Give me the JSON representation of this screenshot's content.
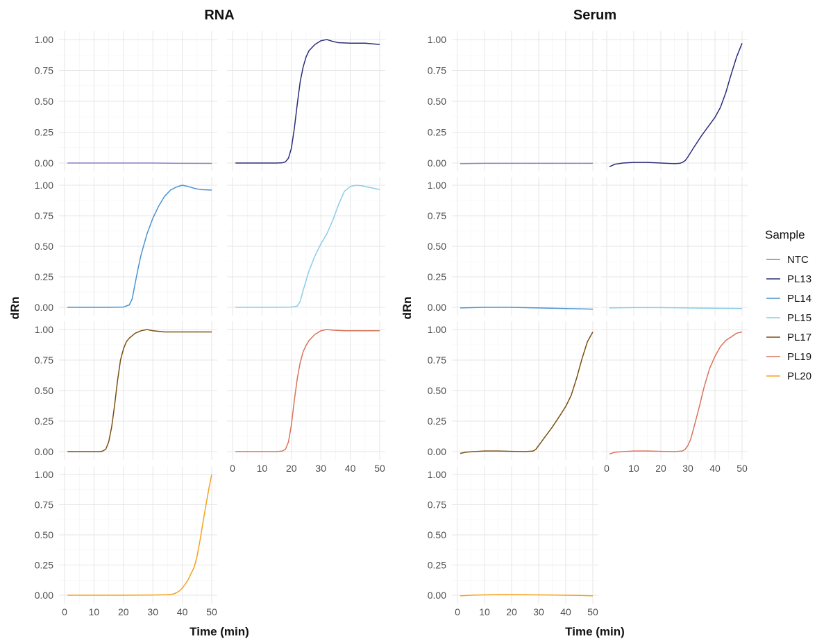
{
  "chart_data": [
    {
      "type": "line",
      "title": "RNA",
      "xlabel": "Time (min)",
      "ylabel": "dRn",
      "xlim": [
        0,
        50
      ],
      "ylim": [
        0,
        1
      ],
      "x_ticks": [
        "0",
        "10",
        "20",
        "30",
        "40",
        "50"
      ],
      "y_ticks": [
        "0.00",
        "0.25",
        "0.50",
        "0.75",
        "1.00"
      ],
      "grid": true,
      "facets": [
        {
          "sample": "NTC",
          "x": [
            1,
            10,
            20,
            30,
            40,
            50
          ],
          "y": [
            0,
            0,
            0,
            0,
            -0.002,
            -0.003
          ]
        },
        {
          "sample": "PL13",
          "x": [
            1,
            10,
            15,
            17,
            18,
            19,
            20,
            21,
            22,
            23,
            24,
            25,
            26,
            28,
            30,
            32,
            34,
            36,
            40,
            45,
            50
          ],
          "y": [
            0,
            0,
            0,
            0.002,
            0.01,
            0.04,
            0.12,
            0.28,
            0.48,
            0.66,
            0.78,
            0.86,
            0.91,
            0.96,
            0.99,
            1.0,
            0.985,
            0.975,
            0.97,
            0.97,
            0.96
          ]
        },
        {
          "sample": "PL14",
          "x": [
            1,
            10,
            15,
            20,
            22,
            23,
            24,
            25,
            26,
            28,
            30,
            32,
            34,
            36,
            38,
            40,
            42,
            44,
            46,
            50
          ],
          "y": [
            0,
            0,
            0,
            0.002,
            0.02,
            0.07,
            0.2,
            0.32,
            0.43,
            0.6,
            0.73,
            0.83,
            0.91,
            0.96,
            0.985,
            1.0,
            0.99,
            0.975,
            0.965,
            0.96
          ]
        },
        {
          "sample": "PL15",
          "x": [
            1,
            10,
            15,
            20,
            22,
            23,
            24,
            25,
            26,
            28,
            30,
            32,
            34,
            36,
            38,
            40,
            42,
            44,
            46,
            48,
            50
          ],
          "y": [
            0,
            0,
            0,
            0.002,
            0.01,
            0.05,
            0.14,
            0.22,
            0.3,
            0.42,
            0.52,
            0.6,
            0.71,
            0.84,
            0.95,
            0.99,
            1.0,
            0.995,
            0.985,
            0.975,
            0.965
          ]
        },
        {
          "sample": "PL17",
          "x": [
            1,
            10,
            12,
            13,
            14,
            15,
            16,
            17,
            18,
            19,
            20,
            21,
            22,
            24,
            26,
            28,
            30,
            32,
            34,
            38,
            42,
            46,
            50
          ],
          "y": [
            0,
            0,
            0,
            0.005,
            0.02,
            0.08,
            0.2,
            0.38,
            0.58,
            0.75,
            0.84,
            0.9,
            0.93,
            0.97,
            0.99,
            1.0,
            0.99,
            0.985,
            0.98,
            0.98,
            0.98,
            0.98,
            0.98
          ]
        },
        {
          "sample": "PL19",
          "x": [
            1,
            10,
            15,
            17,
            18,
            19,
            20,
            21,
            22,
            23,
            24,
            25,
            26,
            28,
            30,
            32,
            34,
            38,
            42,
            46,
            50
          ],
          "y": [
            0,
            0,
            0,
            0.005,
            0.02,
            0.08,
            0.22,
            0.42,
            0.6,
            0.73,
            0.82,
            0.87,
            0.91,
            0.96,
            0.99,
            1.0,
            0.995,
            0.99,
            0.99,
            0.99,
            0.99
          ]
        },
        {
          "sample": "PL20",
          "x": [
            1,
            10,
            20,
            30,
            35,
            37,
            38,
            39,
            40,
            41,
            42,
            43,
            44,
            45,
            46,
            47,
            48,
            49,
            50
          ],
          "y": [
            0,
            0,
            0,
            0.002,
            0.004,
            0.01,
            0.02,
            0.035,
            0.06,
            0.09,
            0.13,
            0.18,
            0.23,
            0.32,
            0.45,
            0.6,
            0.74,
            0.88,
            1.0
          ]
        }
      ]
    },
    {
      "type": "line",
      "title": "Serum",
      "xlabel": "Time (min)",
      "ylabel": "dRn",
      "xlim": [
        0,
        50
      ],
      "ylim": [
        0,
        1
      ],
      "x_ticks": [
        "0",
        "10",
        "20",
        "30",
        "40",
        "50"
      ],
      "y_ticks": [
        "0.00",
        "0.25",
        "0.50",
        "0.75",
        "1.00"
      ],
      "grid": true,
      "facets": [
        {
          "sample": "NTC",
          "x": [
            1,
            10,
            20,
            30,
            40,
            50
          ],
          "y": [
            -0.005,
            -0.002,
            -0.002,
            -0.002,
            -0.002,
            -0.002
          ]
        },
        {
          "sample": "PL13",
          "x": [
            1,
            3,
            6,
            10,
            15,
            20,
            25,
            27,
            28,
            29,
            30,
            32,
            35,
            38,
            40,
            42,
            44,
            46,
            48,
            50
          ],
          "y": [
            -0.03,
            -0.01,
            0.0,
            0.005,
            0.005,
            0.0,
            -0.005,
            -0.002,
            0.005,
            0.02,
            0.05,
            0.12,
            0.22,
            0.31,
            0.37,
            0.45,
            0.57,
            0.72,
            0.86,
            0.97
          ]
        },
        {
          "sample": "PL14",
          "x": [
            1,
            10,
            20,
            30,
            40,
            50
          ],
          "y": [
            -0.005,
            0.0,
            0.0,
            -0.005,
            -0.01,
            -0.015
          ]
        },
        {
          "sample": "PL15",
          "x": [
            1,
            10,
            20,
            30,
            40,
            50
          ],
          "y": [
            -0.005,
            -0.002,
            -0.002,
            -0.005,
            -0.008,
            -0.01
          ]
        },
        {
          "sample": "PL17",
          "x": [
            1,
            3,
            6,
            10,
            15,
            20,
            25,
            28,
            29,
            30,
            31,
            32,
            35,
            38,
            40,
            42,
            44,
            46,
            48,
            50
          ],
          "y": [
            -0.015,
            -0.005,
            0.0,
            0.005,
            0.005,
            0.002,
            0.0,
            0.005,
            0.02,
            0.05,
            0.08,
            0.11,
            0.2,
            0.3,
            0.37,
            0.46,
            0.6,
            0.76,
            0.9,
            0.98
          ]
        },
        {
          "sample": "PL19",
          "x": [
            1,
            3,
            6,
            10,
            15,
            20,
            25,
            28,
            29,
            30,
            31,
            32,
            34,
            36,
            38,
            40,
            42,
            44,
            46,
            48,
            50
          ],
          "y": [
            -0.02,
            -0.005,
            0.0,
            0.005,
            0.005,
            0.002,
            0.0,
            0.005,
            0.02,
            0.05,
            0.1,
            0.18,
            0.35,
            0.53,
            0.68,
            0.78,
            0.86,
            0.91,
            0.94,
            0.97,
            0.98
          ]
        },
        {
          "sample": "PL20",
          "x": [
            1,
            5,
            10,
            15,
            20,
            25,
            30,
            35,
            40,
            45,
            50
          ],
          "y": [
            -0.005,
            0.0,
            0.003,
            0.005,
            0.005,
            0.004,
            0.003,
            0.002,
            0.0,
            -0.002,
            -0.005
          ]
        }
      ]
    }
  ],
  "legend": {
    "title": "Sample",
    "placement": "right",
    "entries": [
      {
        "label": "NTC",
        "color": "#8e7cc3"
      },
      {
        "label": "PL13",
        "color": "#2b2c7a"
      },
      {
        "label": "PL14",
        "color": "#4a93d2"
      },
      {
        "label": "PL15",
        "color": "#89cde7"
      },
      {
        "label": "PL17",
        "color": "#7a4f10"
      },
      {
        "label": "PL19",
        "color": "#d9735a"
      },
      {
        "label": "PL20",
        "color": "#f5a21a"
      }
    ]
  }
}
